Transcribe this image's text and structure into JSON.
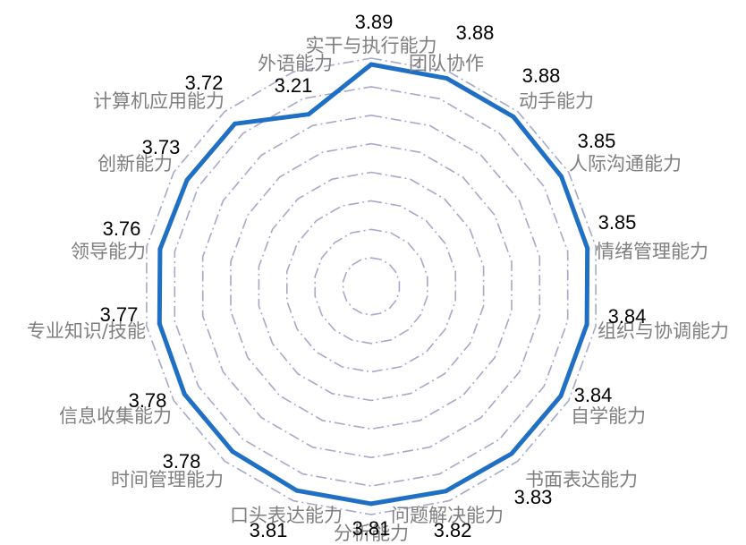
{
  "chart_data": {
    "type": "radar",
    "categories": [
      "实干与执行能力",
      "团队协作",
      "动手能力",
      "人际沟通能力",
      "情绪管理能力",
      "组织与协调能力",
      "自学能力",
      "书面表达能力",
      "问题解决能力",
      "分析能力",
      "口头表达能力",
      "时间管理能力",
      "信息收集能力",
      "专业知识/技能",
      "领导能力",
      "创新能力",
      "计算机应用能力",
      "外语能力"
    ],
    "values": [
      3.89,
      3.88,
      3.88,
      3.85,
      3.85,
      3.84,
      3.84,
      3.83,
      3.82,
      3.81,
      3.81,
      3.78,
      3.78,
      3.77,
      3.76,
      3.73,
      3.72,
      3.21
    ],
    "value_labels": [
      "3.89",
      "3.88",
      "3.88",
      "3.85",
      "3.85",
      "3.84",
      "3.84",
      "3.83",
      "3.82",
      "3.81",
      "3.81",
      "3.78",
      "3.78",
      "3.77",
      "3.76",
      "3.73",
      "3.72",
      "3.21"
    ],
    "rmin": 0,
    "rmax": 4,
    "rings": 8,
    "grid": true,
    "legend": "none",
    "colors": {
      "series": "#1f6fc5",
      "grid": "#a6a9c8",
      "category_text": "#7f7f7f",
      "value_text": "#000000"
    }
  }
}
